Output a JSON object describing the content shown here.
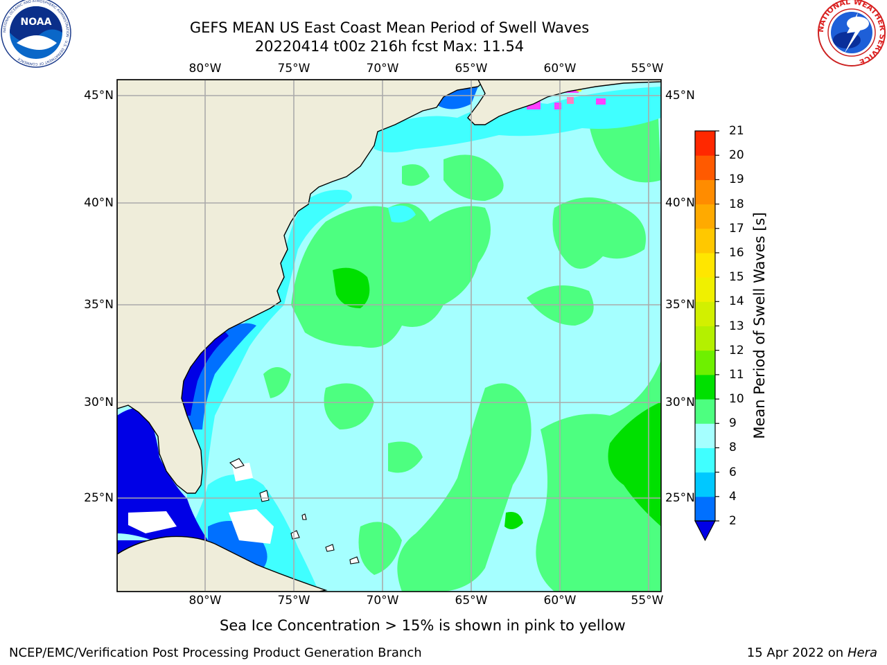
{
  "header": {
    "title_line1": "GEFS MEAN US East Coast Mean Period of Swell Waves",
    "title_line2": "20220414 t00z 216h fcst   Max: 11.54"
  },
  "logos": {
    "noaa_text": "NOAA",
    "noaa_ring": "NATIONAL OCEANIC AND ATMOSPHERIC ADMINISTRATION · U.S. DEPARTMENT OF COMMERCE",
    "nws_ring": "NATIONAL WEATHER SERVICE"
  },
  "map": {
    "lon_labels": [
      "80°W",
      "75°W",
      "70°W",
      "65°W",
      "60°W",
      "55°W"
    ],
    "lat_labels": [
      "45°N",
      "40°N",
      "35°N",
      "30°N",
      "25°N"
    ],
    "colors": {
      "land": "#efedda",
      "grid": "#aaaaaa",
      "ocean_light": "#a5ffff",
      "ocean_cyan": "#40ffff",
      "green": "#4dff80",
      "green_dark": "#00e000",
      "blue": "#0070ff",
      "navy": "#0000e6",
      "ice_pink": "#ff40ff",
      "ice_yellow": "#ffff00"
    }
  },
  "colorbar": {
    "title": "Mean Period of Swell Waves [s]",
    "labels": [
      "2",
      "4",
      "6",
      "8",
      "9",
      "10",
      "11",
      "12",
      "13",
      "14",
      "15",
      "16",
      "17",
      "18",
      "19",
      "20",
      "21"
    ],
    "colors": [
      "#0070ff",
      "#00c8ff",
      "#40ffff",
      "#a5ffff",
      "#4dff80",
      "#00e000",
      "#6ef000",
      "#b4f000",
      "#d2f000",
      "#f0f000",
      "#ffe600",
      "#ffc800",
      "#ffaa00",
      "#ff8c00",
      "#ff5a00",
      "#ff2800",
      "#ff0000"
    ],
    "under_color": "#0000e6"
  },
  "footer": {
    "ice_note": "Sea Ice Concentration > 15% is shown in pink to yellow",
    "producer": "NCEP/EMC/Verification Post Processing Product Generation Branch",
    "date": "15 Apr 2022 on ",
    "machine": "Hera"
  }
}
